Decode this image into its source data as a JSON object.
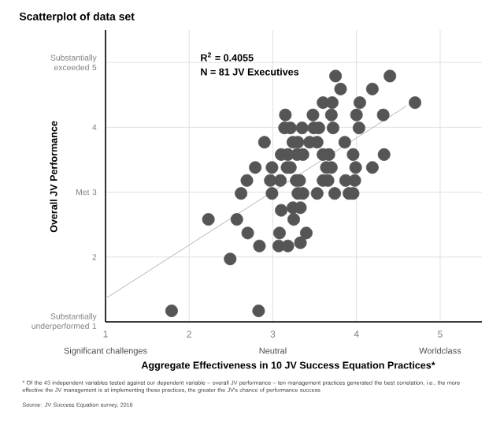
{
  "chart_data": {
    "type": "scatter",
    "title": "Scatterplot of data set",
    "xlabel": "Aggregate Effectiveness in 10 JV Success Equation Practices*",
    "ylabel": "Overall JV Performance",
    "xlim": [
      1,
      5.5
    ],
    "ylim": [
      1,
      5.5
    ],
    "xticks": [
      1,
      2,
      3,
      4,
      5
    ],
    "yticks": [
      {
        "value": 1,
        "label": "Substantially underperformed 1"
      },
      2,
      {
        "value": 3,
        "label": "Met 3"
      },
      4,
      {
        "value": 5,
        "label": "Substantially exceeded 5"
      }
    ],
    "grid": true,
    "marker": "circle",
    "series": [
      {
        "color": "#555555",
        "x": [
          3.75,
          4.4,
          3.81,
          4.19,
          3.6,
          3.71,
          4.04,
          4.7,
          3.15,
          3.48,
          3.7,
          4.0,
          4.32,
          3.14,
          3.21,
          3.35,
          3.49,
          3.55,
          3.72,
          4.03,
          2.9,
          3.24,
          3.3,
          3.44,
          3.53,
          3.86,
          3.1,
          3.18,
          3.29,
          3.36,
          3.6,
          3.67,
          3.96,
          4.33,
          2.79,
          2.99,
          3.17,
          3.21,
          3.64,
          3.7,
          3.99,
          4.19,
          2.69,
          2.97,
          3.09,
          3.28,
          3.32,
          3.6,
          3.66,
          3.87,
          3.98,
          2.62,
          2.99,
          3.3,
          3.36,
          3.53,
          3.74,
          3.91,
          3.96,
          3.24,
          3.33,
          3.1,
          2.23,
          2.57,
          3.25,
          2.7,
          3.08,
          3.4,
          2.84,
          3.07,
          3.18,
          3.33,
          2.49,
          1.79,
          2.83
        ],
        "values": [
          4.79,
          4.79,
          4.59,
          4.59,
          4.38,
          4.38,
          4.38,
          4.38,
          4.19,
          4.19,
          4.19,
          4.19,
          4.19,
          3.99,
          3.99,
          3.99,
          3.99,
          3.99,
          3.99,
          3.99,
          3.77,
          3.77,
          3.77,
          3.77,
          3.77,
          3.77,
          3.58,
          3.58,
          3.58,
          3.58,
          3.58,
          3.58,
          3.58,
          3.58,
          3.38,
          3.38,
          3.38,
          3.38,
          3.38,
          3.38,
          3.38,
          3.38,
          3.18,
          3.18,
          3.18,
          3.18,
          3.18,
          3.18,
          3.18,
          3.18,
          3.18,
          2.98,
          2.98,
          2.98,
          2.98,
          2.98,
          2.98,
          2.98,
          2.98,
          2.76,
          2.76,
          2.72,
          2.58,
          2.58,
          2.58,
          2.37,
          2.37,
          2.37,
          2.17,
          2.17,
          2.17,
          2.22,
          1.97,
          1.17,
          1.17
        ]
      },
      {
        "type": "line",
        "color": "#b4b4b4",
        "marker": "none",
        "x": [
          1,
          4.6
        ],
        "values": [
          1.36,
          4.33
        ]
      }
    ],
    "annotations": [
      "R$^{2}$ = 0.4055",
      "N = 81 JV Executives",
      "* Of the 43 independent variables tested against our dependent variable – overall JV performance – ten management practices generated the best correlation, i.e., the more effective the JV management is at implementing these practices, the greater the JV's chance of performance success",
      "Source: JV Success Equation survey, 2016",
      "Significant challenges",
      "Neutral",
      "Worldclass"
    ]
  }
}
